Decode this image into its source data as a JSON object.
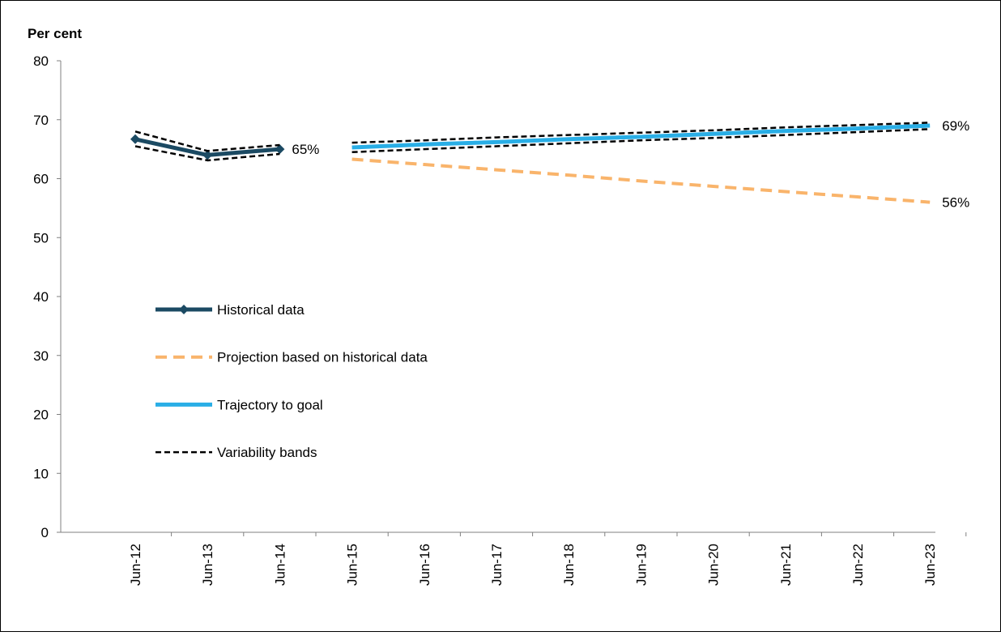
{
  "chart_data": {
    "type": "line",
    "y_axis_title": "Per cent",
    "categories": [
      "Jun-12",
      "Jun-13",
      "Jun-14",
      "Jun-15",
      "Jun-16",
      "Jun-17",
      "Jun-18",
      "Jun-19",
      "Jun-20",
      "Jun-21",
      "Jun-22",
      "Jun-23"
    ],
    "ylim": [
      0,
      80
    ],
    "yticks": [
      0,
      10,
      20,
      30,
      40,
      50,
      60,
      70,
      80
    ],
    "series": [
      {
        "name": "Historical data",
        "color": "#1b4a63",
        "style": "solid-marker",
        "values": [
          66.7,
          64,
          65,
          null,
          null,
          null,
          null,
          null,
          null,
          null,
          null,
          null
        ],
        "value_labels": [
          null,
          null,
          "65%",
          null,
          null,
          null,
          null,
          null,
          null,
          null,
          null,
          null
        ]
      },
      {
        "name": "Projection based on historical data",
        "color": "#f9b46b",
        "style": "dashed",
        "values": [
          null,
          null,
          null,
          63.3,
          62.4,
          61.5,
          60.6,
          59.6,
          58.7,
          57.8,
          56.9,
          56
        ],
        "value_labels": [
          null,
          null,
          null,
          null,
          null,
          null,
          null,
          null,
          null,
          null,
          null,
          "56%"
        ]
      },
      {
        "name": "Trajectory to goal",
        "color": "#29aee6",
        "style": "solid",
        "values": [
          null,
          null,
          null,
          65.3,
          65.8,
          66.2,
          66.7,
          67.1,
          67.6,
          68.1,
          68.5,
          69
        ],
        "value_labels": [
          null,
          null,
          null,
          null,
          null,
          null,
          null,
          null,
          null,
          null,
          null,
          "69%"
        ]
      },
      {
        "name": "Variability bands",
        "color": "#000000",
        "style": "band",
        "pieces": [
          {
            "upper": [
              68,
              64.7,
              65.7,
              null,
              null,
              null,
              null,
              null,
              null,
              null,
              null,
              null
            ],
            "lower": [
              65.5,
              63.1,
              64.2,
              null,
              null,
              null,
              null,
              null,
              null,
              null,
              null,
              null
            ]
          },
          {
            "upper": [
              null,
              null,
              null,
              66.1,
              66.5,
              67,
              67.4,
              67.8,
              68.2,
              68.7,
              69.1,
              69.5
            ],
            "lower": [
              null,
              null,
              null,
              64.5,
              65,
              65.5,
              66,
              66.5,
              66.9,
              67.4,
              67.9,
              68.4
            ]
          }
        ]
      }
    ]
  }
}
